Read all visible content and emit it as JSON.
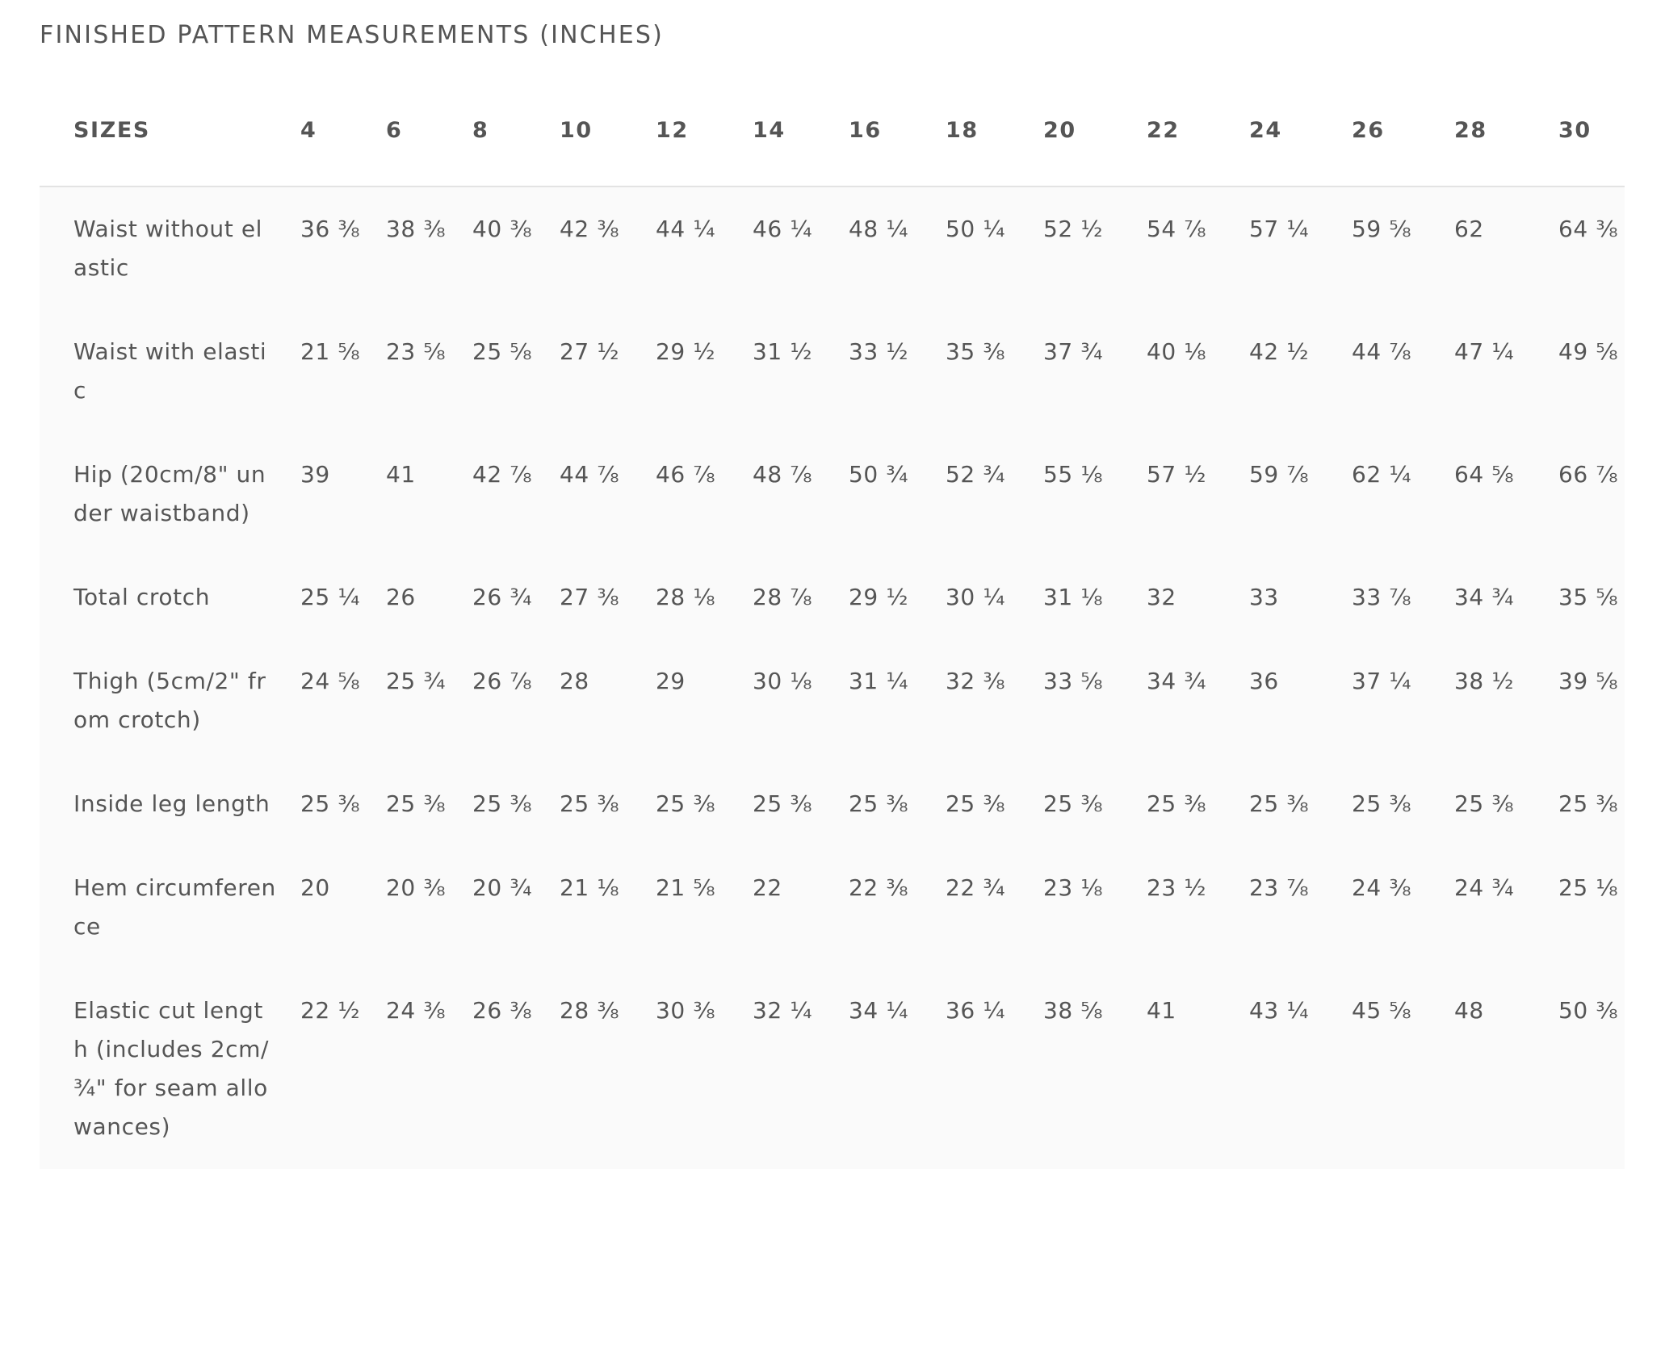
{
  "heading": "FINISHED PATTERN MEASUREMENTS (INCHES)",
  "table": {
    "corner_label": "SIZES",
    "sizes": [
      "4",
      "6",
      "8",
      "10",
      "12",
      "14",
      "16",
      "18",
      "20",
      "22",
      "24",
      "26",
      "28",
      "30"
    ],
    "rows": [
      {
        "label": "Waist without elastic",
        "values": [
          "36 ⅜",
          "38 ⅜",
          "40 ⅜",
          "42 ⅜",
          "44 ¼",
          "46 ¼",
          "48 ¼",
          "50 ¼",
          "52 ½",
          "54 ⅞",
          "57 ¼",
          "59 ⅝",
          "62",
          "64 ⅜"
        ]
      },
      {
        "label": "Waist with elastic",
        "values": [
          "21 ⅝",
          "23 ⅝",
          "25 ⅝",
          "27 ½",
          "29 ½",
          "31 ½",
          "33 ½",
          "35 ⅜",
          "37 ¾",
          "40 ⅛",
          "42 ½",
          "44 ⅞",
          "47 ¼",
          "49 ⅝"
        ]
      },
      {
        "label": "Hip (20cm/8\" under waistband)",
        "values": [
          "39",
          "41",
          "42 ⅞",
          "44 ⅞",
          "46 ⅞",
          "48 ⅞",
          "50 ¾",
          "52 ¾",
          "55 ⅛",
          "57 ½",
          "59 ⅞",
          "62 ¼",
          "64 ⅝",
          "66 ⅞"
        ]
      },
      {
        "label": "Total crotch",
        "values": [
          "25 ¼",
          "26",
          "26 ¾",
          "27 ⅜",
          "28 ⅛",
          "28 ⅞",
          "29 ½",
          "30 ¼",
          "31 ⅛",
          "32",
          "33",
          "33 ⅞",
          "34 ¾",
          "35 ⅝"
        ]
      },
      {
        "label": "Thigh (5cm/2\" from crotch)",
        "values": [
          "24 ⅝",
          "25 ¾",
          "26 ⅞",
          "28",
          "29",
          "30 ⅛",
          "31 ¼",
          "32 ⅜",
          "33 ⅝",
          "34 ¾",
          "36",
          "37 ¼",
          "38 ½",
          "39 ⅝"
        ]
      },
      {
        "label": "Inside leg length",
        "values": [
          "25 ⅜",
          "25 ⅜",
          "25 ⅜",
          "25 ⅜",
          "25 ⅜",
          "25 ⅜",
          "25 ⅜",
          "25 ⅜",
          "25 ⅜",
          "25 ⅜",
          "25 ⅜",
          "25 ⅜",
          "25 ⅜",
          "25 ⅜"
        ]
      },
      {
        "label": "Hem circumference",
        "values": [
          "20",
          "20 ⅜",
          "20 ¾",
          "21 ⅛",
          "21 ⅝",
          "22",
          "22 ⅜",
          "22 ¾",
          "23 ⅛",
          "23 ½",
          "23 ⅞",
          "24 ⅜",
          "24 ¾",
          "25 ⅛"
        ]
      },
      {
        "label": "Elastic cut length (includes 2cm/¾\" for seam allowances)",
        "values": [
          "22 ½",
          "24 ⅜",
          "26 ⅜",
          "28 ⅜",
          "30 ⅜",
          "32 ¼",
          "34 ¼",
          "36 ¼",
          "38 ⅝",
          "41",
          "43 ¼",
          "45 ⅝",
          "48",
          "50 ⅜"
        ]
      }
    ]
  }
}
